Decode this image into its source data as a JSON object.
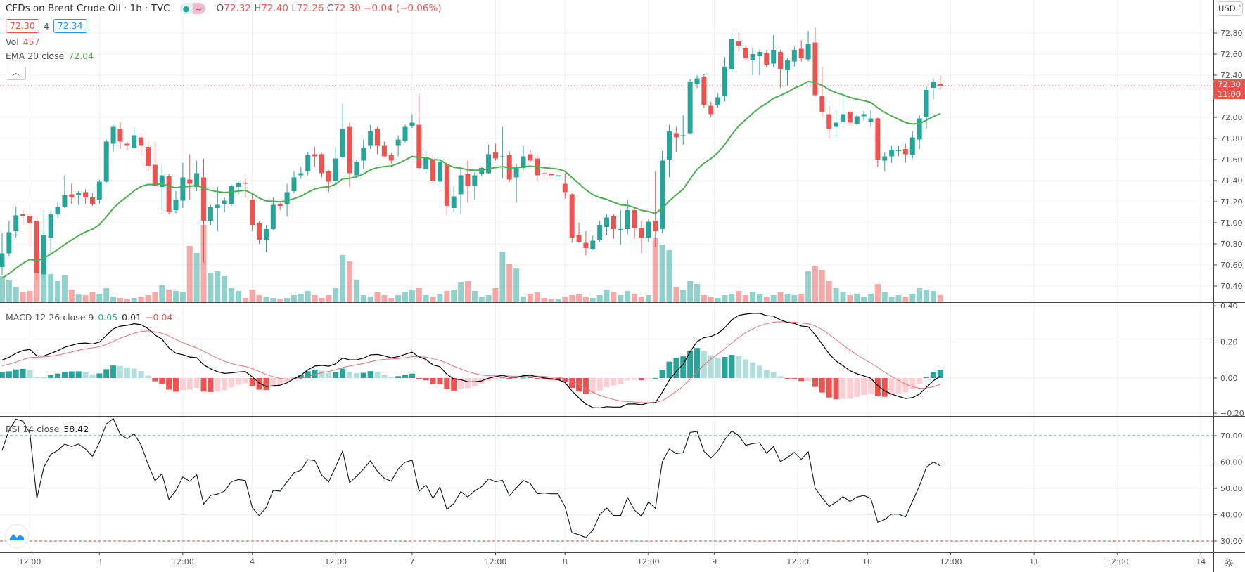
{
  "header": {
    "title": "CFDs on Brent Crude Oil · 1h · TVC",
    "ohlc_o_label": "O",
    "ohlc_o": "72.32",
    "ohlc_h_label": "H",
    "ohlc_h": "72.40",
    "ohlc_l_label": "L",
    "ohlc_l": "72.26",
    "ohlc_c_label": "C",
    "ohlc_c": "72.30",
    "change": "−0.04 (−0.06%)",
    "sell_price": "72.30",
    "spread": "4",
    "buy_price": "72.34",
    "vol_label": "Vol",
    "vol_value": "457",
    "ema_label": "EMA 20 close",
    "ema_value": "72.04",
    "collapse_icon": "chevron-up-icon",
    "currency": "USD"
  },
  "last_price": {
    "price": "72.30",
    "countdown": "11:00",
    "value": 72.3
  },
  "colors": {
    "up": "#26a69a",
    "down": "#ef5350",
    "ema": "#4caf50",
    "macd": "#000000",
    "signal": "#e57373",
    "rsi": "#131722"
  },
  "macd_legend": {
    "label": "MACD 12 26 close 9",
    "hist": "0.05",
    "macd": "0.01",
    "signal": "−0.04"
  },
  "rsi_legend": {
    "label": "RSI 14 close",
    "value": "58.42"
  },
  "chart_data": {
    "type": "candlestick",
    "title": "CFDs on Brent Crude Oil · 1h · TVC",
    "price_axis": {
      "range": [
        70.3,
        72.9
      ],
      "ticks": [
        "72.80",
        "72.60",
        "72.40",
        "72.00",
        "71.80",
        "71.60",
        "71.40",
        "71.20",
        "71.00",
        "70.80",
        "70.60",
        "70.40"
      ],
      "tick_values": [
        72.8,
        72.6,
        72.4,
        72.0,
        71.8,
        71.6,
        71.4,
        71.2,
        71.0,
        70.8,
        70.6,
        70.4
      ]
    },
    "macd_axis": {
      "ticks": [
        "0.40",
        "0.20",
        "0.00",
        "−0.20"
      ],
      "tick_values": [
        0.4,
        0.2,
        0,
        -0.2
      ]
    },
    "rsi_axis": {
      "ticks": [
        "70.00",
        "60.00",
        "50.00",
        "40.00",
        "30.00"
      ],
      "tick_values": [
        70,
        60,
        50,
        40,
        30
      ],
      "bands": [
        70,
        30
      ]
    },
    "time_axis": {
      "labels": [
        "12:00",
        "3",
        "12:00",
        "4",
        "12:00",
        "7",
        "12:00",
        "8",
        "12:00",
        "9",
        "12:00",
        "10",
        "12:00",
        "11",
        "12:00",
        "14"
      ],
      "label_bar_index": [
        4,
        14,
        26,
        36,
        48,
        59,
        71,
        81,
        93,
        102.5,
        114.5,
        124.5,
        136.5,
        148.5,
        160.5,
        172.5
      ]
    },
    "ohlc": [
      [
        70.58,
        70.9,
        70.5,
        70.71
      ],
      [
        70.71,
        71.02,
        70.68,
        70.91
      ],
      [
        70.92,
        71.15,
        70.86,
        71.07
      ],
      [
        71.08,
        71.12,
        70.98,
        71.06
      ],
      [
        71.06,
        71.08,
        70.78,
        71.0
      ],
      [
        71.02,
        71.07,
        70.45,
        70.52
      ],
      [
        70.51,
        71.12,
        70.48,
        70.88
      ],
      [
        70.86,
        71.11,
        70.7,
        71.08
      ],
      [
        71.08,
        71.19,
        71.05,
        71.15
      ],
      [
        71.15,
        71.45,
        71.14,
        71.26
      ],
      [
        71.27,
        71.37,
        71.18,
        71.24
      ],
      [
        71.26,
        71.3,
        71.17,
        71.28
      ],
      [
        71.29,
        71.32,
        71.18,
        71.24
      ],
      [
        71.24,
        71.28,
        71.16,
        71.18
      ],
      [
        71.22,
        71.41,
        71.18,
        71.39
      ],
      [
        71.39,
        71.79,
        71.38,
        71.77
      ],
      [
        71.75,
        71.93,
        71.68,
        71.91
      ],
      [
        71.89,
        71.95,
        71.7,
        71.77
      ],
      [
        71.75,
        71.77,
        71.69,
        71.73
      ],
      [
        71.71,
        71.91,
        71.7,
        71.83
      ],
      [
        71.81,
        71.85,
        71.64,
        71.73
      ],
      [
        71.72,
        71.78,
        71.49,
        71.54
      ],
      [
        71.55,
        71.77,
        71.35,
        71.35
      ],
      [
        71.34,
        71.55,
        71.12,
        71.45
      ],
      [
        71.44,
        71.46,
        71.08,
        71.1
      ],
      [
        71.12,
        71.3,
        71.09,
        71.22
      ],
      [
        71.21,
        71.57,
        71.14,
        71.43
      ],
      [
        71.41,
        71.65,
        71.22,
        71.37
      ],
      [
        71.34,
        71.59,
        71.3,
        71.47
      ],
      [
        71.43,
        71.61,
        70.62,
        71.02
      ],
      [
        71.02,
        71.17,
        70.98,
        71.15
      ],
      [
        71.14,
        71.34,
        70.92,
        71.17
      ],
      [
        71.18,
        71.24,
        71.1,
        71.21
      ],
      [
        71.18,
        71.36,
        71.16,
        71.35
      ],
      [
        71.34,
        71.4,
        71.27,
        71.38
      ],
      [
        71.38,
        71.42,
        71.24,
        71.37
      ],
      [
        71.22,
        71.27,
        70.92,
        70.98
      ],
      [
        71.0,
        71.02,
        70.8,
        70.84
      ],
      [
        70.84,
        70.98,
        70.72,
        70.94
      ],
      [
        70.94,
        71.24,
        70.93,
        71.17
      ],
      [
        71.18,
        71.19,
        71.12,
        71.16
      ],
      [
        71.18,
        71.37,
        71.06,
        71.29
      ],
      [
        71.3,
        71.49,
        71.28,
        71.43
      ],
      [
        71.45,
        71.53,
        71.42,
        71.47
      ],
      [
        71.49,
        71.67,
        71.45,
        71.64
      ],
      [
        71.65,
        71.72,
        71.53,
        71.63
      ],
      [
        71.65,
        71.66,
        71.43,
        71.47
      ],
      [
        71.49,
        71.5,
        71.29,
        71.39
      ],
      [
        71.4,
        71.72,
        71.38,
        71.61
      ],
      [
        71.62,
        72.13,
        71.61,
        71.89
      ],
      [
        71.91,
        71.95,
        71.34,
        71.47
      ],
      [
        71.45,
        71.6,
        71.42,
        71.58
      ],
      [
        71.59,
        71.79,
        71.51,
        71.71
      ],
      [
        71.73,
        71.93,
        71.7,
        71.87
      ],
      [
        71.89,
        71.91,
        71.65,
        71.73
      ],
      [
        71.73,
        71.77,
        71.63,
        71.63
      ],
      [
        71.64,
        71.66,
        71.56,
        71.59
      ],
      [
        71.73,
        71.83,
        71.63,
        71.79
      ],
      [
        71.78,
        71.93,
        71.76,
        71.91
      ],
      [
        71.92,
        72.03,
        71.9,
        71.95
      ],
      [
        71.93,
        72.23,
        71.5,
        71.52
      ],
      [
        71.51,
        71.69,
        71.47,
        71.62
      ],
      [
        71.6,
        71.65,
        71.38,
        71.4
      ],
      [
        71.39,
        71.6,
        71.33,
        71.58
      ],
      [
        71.56,
        71.58,
        71.07,
        71.16
      ],
      [
        71.14,
        71.35,
        71.1,
        71.25
      ],
      [
        71.27,
        71.53,
        71.08,
        71.45
      ],
      [
        71.46,
        71.59,
        71.19,
        71.35
      ],
      [
        71.35,
        71.48,
        71.22,
        71.45
      ],
      [
        71.46,
        71.53,
        71.44,
        71.52
      ],
      [
        71.47,
        71.74,
        71.46,
        71.65
      ],
      [
        71.67,
        71.75,
        71.59,
        71.61
      ],
      [
        71.63,
        71.91,
        71.42,
        71.63
      ],
      [
        71.64,
        71.68,
        71.39,
        71.41
      ],
      [
        71.43,
        71.56,
        71.19,
        71.52
      ],
      [
        71.52,
        71.73,
        71.5,
        71.63
      ],
      [
        71.65,
        71.69,
        71.57,
        71.59
      ],
      [
        71.61,
        71.64,
        71.39,
        71.45
      ],
      [
        71.47,
        71.5,
        71.42,
        71.46
      ],
      [
        71.46,
        71.48,
        71.42,
        71.45
      ],
      [
        71.44,
        71.46,
        71.43,
        71.45
      ],
      [
        71.37,
        71.47,
        71.23,
        71.29
      ],
      [
        71.27,
        71.28,
        70.81,
        70.86
      ],
      [
        70.88,
        71.0,
        70.81,
        70.82
      ],
      [
        70.81,
        70.92,
        70.69,
        70.76
      ],
      [
        70.75,
        70.88,
        70.74,
        70.83
      ],
      [
        70.84,
        71.02,
        70.82,
        70.98
      ],
      [
        70.96,
        71.08,
        70.88,
        71.05
      ],
      [
        71.06,
        71.08,
        70.85,
        70.94
      ],
      [
        70.94,
        71.12,
        70.79,
        70.94
      ],
      [
        70.94,
        71.22,
        70.89,
        71.12
      ],
      [
        71.12,
        71.14,
        70.85,
        70.95
      ],
      [
        70.95,
        71.02,
        70.71,
        70.86
      ],
      [
        70.86,
        71.03,
        70.82,
        71.01
      ],
      [
        71.02,
        71.49,
        70.77,
        70.92
      ],
      [
        70.94,
        71.68,
        70.9,
        71.59
      ],
      [
        71.6,
        71.93,
        71.43,
        71.87
      ],
      [
        71.85,
        71.91,
        71.67,
        71.81
      ],
      [
        71.83,
        72.02,
        71.74,
        71.83
      ],
      [
        71.85,
        72.36,
        71.84,
        72.34
      ],
      [
        72.32,
        72.4,
        72.28,
        72.37
      ],
      [
        72.38,
        72.41,
        72.09,
        72.12
      ],
      [
        72.11,
        72.15,
        72.0,
        72.03
      ],
      [
        72.12,
        72.23,
        72.09,
        72.19
      ],
      [
        72.2,
        72.57,
        72.15,
        72.48
      ],
      [
        72.46,
        72.8,
        72.43,
        72.74
      ],
      [
        72.72,
        72.8,
        72.62,
        72.68
      ],
      [
        72.66,
        72.68,
        72.54,
        72.56
      ],
      [
        72.54,
        72.66,
        72.4,
        72.6
      ],
      [
        72.58,
        72.64,
        72.4,
        72.62
      ],
      [
        72.61,
        72.64,
        72.47,
        72.5
      ],
      [
        72.51,
        72.78,
        72.47,
        72.64
      ],
      [
        72.62,
        72.64,
        72.28,
        72.46
      ],
      [
        72.45,
        72.56,
        72.3,
        72.54
      ],
      [
        72.53,
        72.67,
        72.48,
        72.64
      ],
      [
        72.65,
        72.73,
        72.53,
        72.56
      ],
      [
        72.55,
        72.82,
        72.53,
        72.7
      ],
      [
        72.71,
        72.85,
        72.2,
        72.21
      ],
      [
        72.2,
        72.48,
        72.01,
        72.05
      ],
      [
        72.03,
        72.11,
        71.8,
        71.89
      ],
      [
        71.91,
        72.07,
        71.8,
        71.95
      ],
      [
        71.96,
        72.25,
        71.93,
        72.03
      ],
      [
        72.05,
        72.07,
        71.92,
        71.95
      ],
      [
        71.94,
        72.03,
        71.92,
        72.01
      ],
      [
        72.01,
        72.06,
        71.97,
        72.03
      ],
      [
        71.96,
        72.07,
        71.91,
        71.99
      ],
      [
        71.99,
        72.0,
        71.53,
        71.6
      ],
      [
        71.59,
        71.67,
        71.49,
        71.63
      ],
      [
        71.63,
        71.73,
        71.57,
        71.69
      ],
      [
        71.68,
        71.73,
        71.63,
        71.69
      ],
      [
        71.7,
        71.75,
        71.57,
        71.65
      ],
      [
        71.64,
        71.87,
        71.61,
        71.81
      ],
      [
        71.79,
        72.02,
        71.7,
        71.99
      ],
      [
        72.0,
        72.3,
        71.89,
        72.26
      ],
      [
        72.28,
        72.37,
        72.17,
        72.34
      ],
      [
        72.32,
        72.4,
        72.26,
        72.3
      ]
    ],
    "volume": [
      1665,
      1440,
      990,
      630,
      720,
      3150,
      2790,
      1800,
      1350,
      1710,
      810,
      540,
      450,
      630,
      540,
      900,
      360,
      270,
      225,
      270,
      360,
      450,
      630,
      1080,
      810,
      720,
      630,
      3600,
      3150,
      4950,
      1890,
      1980,
      1665,
      900,
      720,
      270,
      810,
      450,
      360,
      270,
      225,
      270,
      450,
      540,
      720,
      450,
      270,
      450,
      900,
      3015,
      2610,
      1440,
      450,
      360,
      630,
      450,
      270,
      450,
      630,
      810,
      900,
      450,
      360,
      540,
      720,
      810,
      1260,
      1350,
      720,
      360,
      450,
      900,
      3240,
      2430,
      2160,
      360,
      540,
      630,
      270,
      180,
      180,
      360,
      450,
      540,
      360,
      270,
      450,
      810,
      630,
      450,
      720,
      540,
      360,
      450,
      4095,
      3690,
      3330,
      990,
      810,
      1350,
      1170,
      450,
      360,
      270,
      450,
      540,
      720,
      450,
      630,
      540,
      360,
      450,
      630,
      540,
      450,
      540,
      1980,
      2340,
      2070,
      1350,
      900,
      630,
      450,
      540,
      360,
      540,
      1170,
      630,
      360,
      450,
      360,
      540,
      900,
      810,
      720,
      457
    ],
    "indicator_seeds": {
      "ema20": 70.45,
      "ema12": 70.62,
      "ema26": 70.52,
      "signal": 0.06,
      "rsi_avg_gain": 0.03,
      "rsi_avg_loss": 0.022
    }
  }
}
